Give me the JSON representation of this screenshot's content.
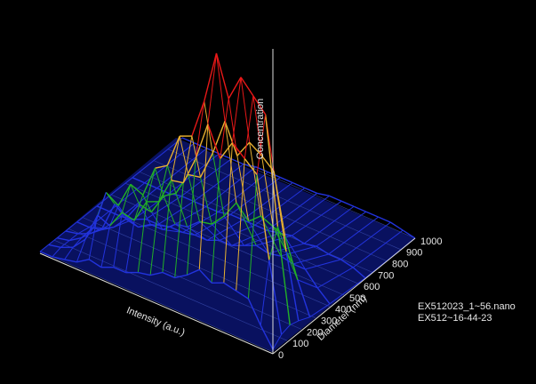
{
  "chart_data": {
    "type": "surface3d",
    "xlabel": "Intensity (a.u.)",
    "ylabel": "Diameter (nm)",
    "zlabel": "Concentration",
    "annotations": [
      "EX512023_1~56.nano",
      "EX512~16-44-23"
    ],
    "ylim": [
      0,
      1000
    ],
    "yticks": [
      0,
      100,
      200,
      300,
      400,
      500,
      600,
      700,
      800,
      900,
      1000
    ],
    "zlim": [
      0,
      100
    ],
    "diameters": [
      0,
      60,
      120,
      180,
      260,
      400,
      650,
      1000
    ],
    "rows": [
      [
        1,
        8,
        16,
        17,
        18,
        16,
        19,
        15,
        12,
        12,
        9,
        8,
        6,
        6,
        4,
        5,
        2,
        1,
        0,
        0
      ],
      [
        4,
        30,
        60,
        64,
        68,
        60,
        71,
        56,
        45,
        44,
        34,
        32,
        23,
        24,
        17,
        19,
        8,
        3,
        1,
        0
      ],
      [
        5,
        40,
        80,
        85,
        90,
        80,
        95,
        75,
        60,
        58,
        45,
        42,
        30,
        32,
        22,
        25,
        10,
        4,
        1,
        0
      ],
      [
        4,
        28,
        56,
        60,
        63,
        56,
        67,
        53,
        42,
        41,
        32,
        29,
        21,
        22,
        15,
        18,
        7,
        3,
        1,
        0
      ],
      [
        2,
        14,
        28,
        30,
        32,
        28,
        33,
        26,
        21,
        20,
        16,
        15,
        11,
        11,
        8,
        9,
        4,
        1,
        0,
        0
      ],
      [
        1,
        5,
        10,
        10,
        11,
        10,
        11,
        9,
        7,
        7,
        5,
        5,
        4,
        4,
        3,
        3,
        1,
        0,
        0,
        0
      ],
      [
        0,
        2,
        3,
        3,
        4,
        3,
        4,
        3,
        2,
        2,
        2,
        2,
        1,
        1,
        1,
        1,
        0,
        0,
        0,
        0
      ],
      [
        0,
        1,
        2,
        2,
        2,
        2,
        2,
        2,
        1,
        1,
        1,
        1,
        1,
        1,
        0,
        0,
        0,
        0,
        0,
        0
      ]
    ]
  }
}
